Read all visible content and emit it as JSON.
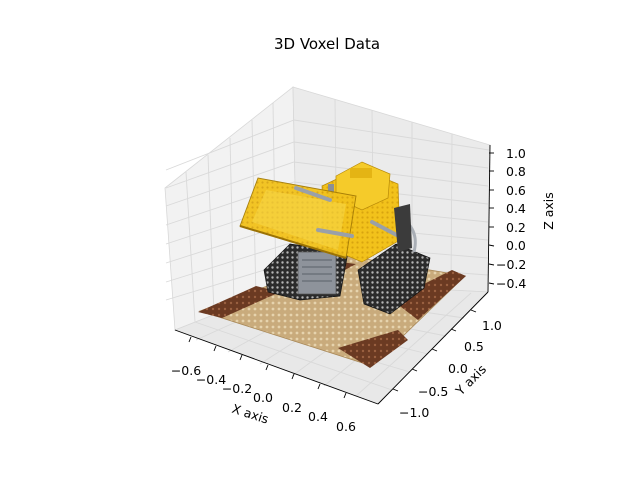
{
  "chart_data": {
    "type": "scatter",
    "title": "3D Voxel Data",
    "xlabel": "X axis",
    "ylabel": "Y axis",
    "zlabel": "Z axis",
    "xlim": [
      -0.7,
      0.7
    ],
    "ylim": [
      -1.3,
      1.3
    ],
    "zlim": [
      -0.5,
      1.1
    ],
    "x_ticks": [
      "−0.6",
      "−0.4",
      "−0.2",
      "0.0",
      "0.2",
      "0.4",
      "0.6"
    ],
    "y_ticks": [
      "−1.0",
      "−0.5",
      "0.0",
      "0.5",
      "1.0"
    ],
    "z_ticks": [
      "−0.4",
      "−0.2",
      "0.0",
      "0.2",
      "0.4",
      "0.6",
      "0.8",
      "1.0"
    ],
    "grid": true,
    "subject": "bulldozer",
    "colors": {
      "body": "#f2c21b",
      "body_dark": "#c99a0e",
      "track": "#2f2f2f",
      "metal": "#9aa0a8",
      "plate": "#c8a878",
      "pad": "#6b3a22",
      "pane": "#f2f2f2",
      "grid": "#dcdcdc"
    }
  }
}
